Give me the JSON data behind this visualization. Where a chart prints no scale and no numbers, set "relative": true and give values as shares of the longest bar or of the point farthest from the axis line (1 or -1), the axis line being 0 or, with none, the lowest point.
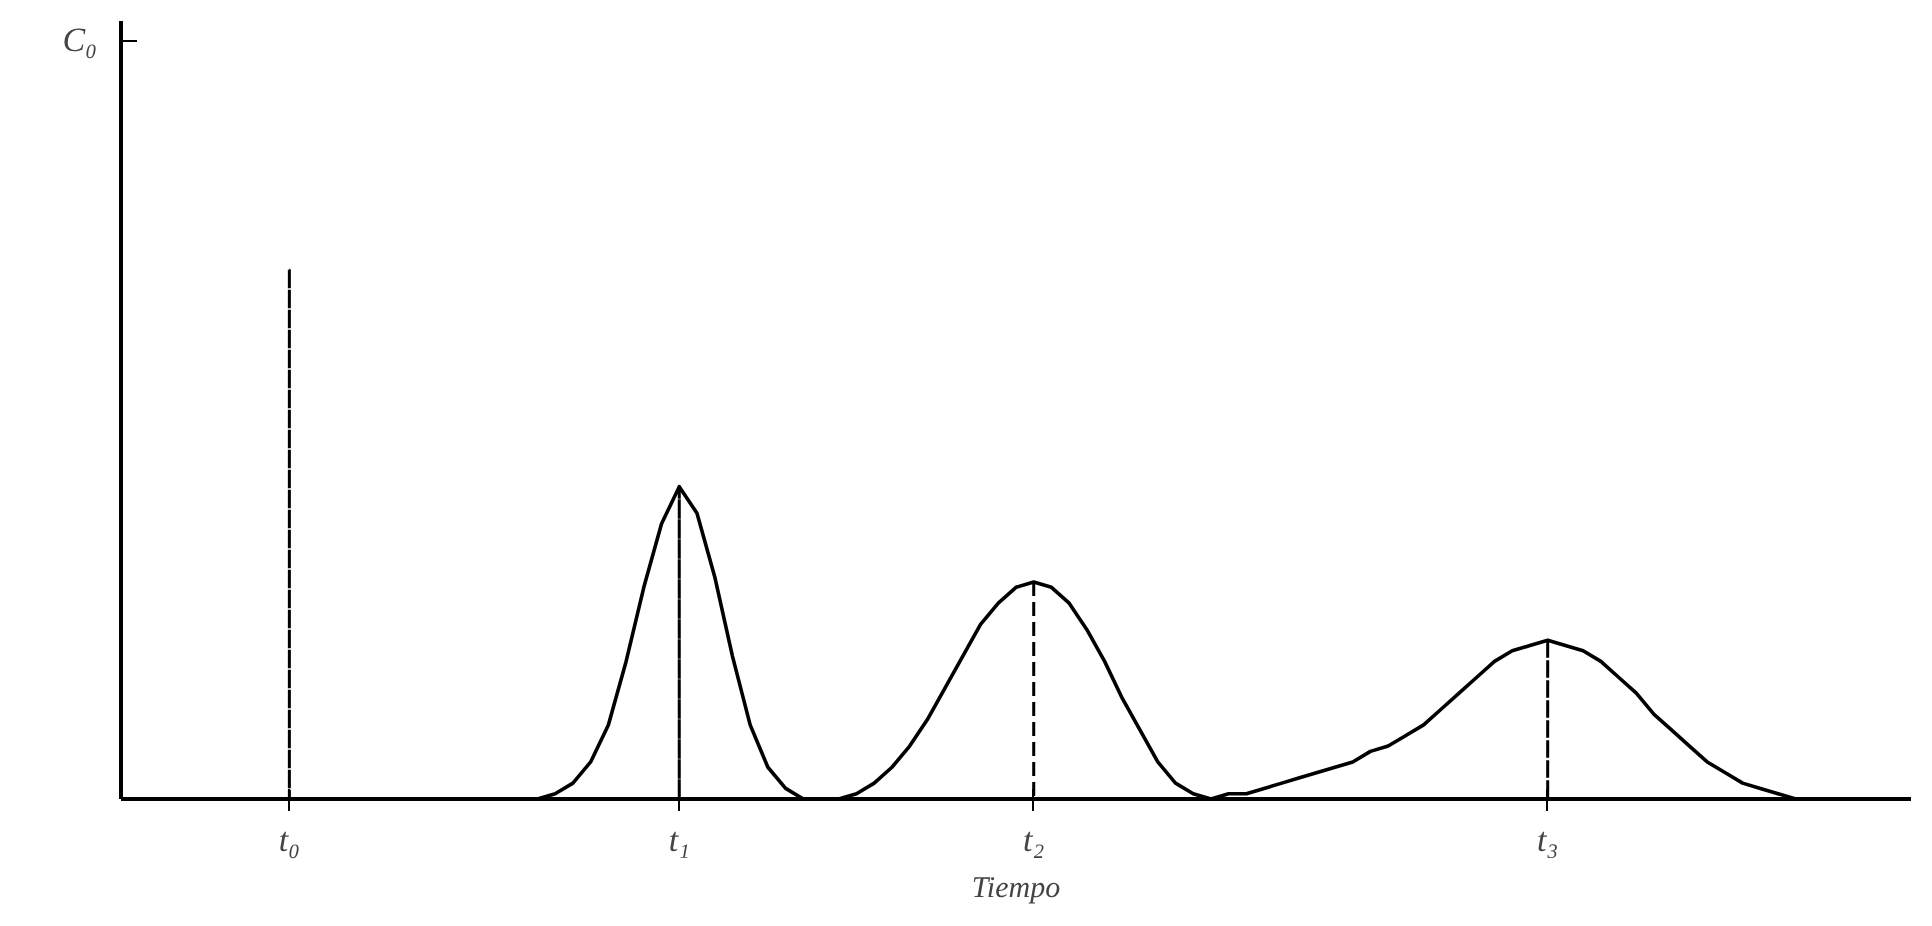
{
  "chart_data": {
    "type": "line",
    "relative": true,
    "xlabel": "Tiempo",
    "annotations": [
      "C₀"
    ],
    "categories": [
      null,
      null,
      null,
      null,
      null,
      null,
      null,
      null,
      null,
      "t₀",
      null,
      null,
      null,
      null,
      null,
      null,
      null,
      null,
      null,
      null,
      null,
      null,
      null,
      null,
      null,
      null,
      null,
      null,
      null,
      null,
      null,
      "t₁",
      null,
      null,
      null,
      null,
      null,
      null,
      null,
      null,
      null,
      null,
      null,
      null,
      null,
      null,
      null,
      null,
      null,
      null,
      null,
      "t₂",
      null,
      null,
      null,
      null,
      null,
      null,
      null,
      null,
      null,
      null,
      null,
      null,
      null,
      null,
      null,
      null,
      null,
      null,
      null,
      null,
      null,
      null,
      null,
      null,
      null,
      null,
      null,
      null,
      "t₃",
      null,
      null,
      null,
      null,
      null,
      null,
      null,
      null,
      null,
      null,
      null,
      null,
      null,
      null,
      null,
      null,
      null,
      null,
      null,
      null
    ],
    "series": [
      {
        "color": "#000000",
        "line_style": "solid",
        "values": [
          null,
          null,
          null,
          null,
          null,
          null,
          null,
          null,
          null,
          null,
          null,
          null,
          null,
          null,
          null,
          null,
          null,
          null,
          null,
          null,
          null,
          null,
          null,
          0,
          0.01,
          0.03,
          0.07,
          0.14,
          0.26,
          0.4,
          0.52,
          0.59,
          0.54,
          0.42,
          0.27,
          0.14,
          0.06,
          0.02,
          0,
          0,
          0,
          0.01,
          0.03,
          0.06,
          0.1,
          0.15,
          0.21,
          0.27,
          0.33,
          0.37,
          0.4,
          0.41,
          0.4,
          0.37,
          0.32,
          0.26,
          0.19,
          0.13,
          0.07,
          0.03,
          0.01,
          0,
          0.01,
          0.01,
          0.02,
          0.03,
          0.04,
          0.05,
          0.06,
          0.07,
          0.09,
          0.1,
          0.12,
          0.14,
          0.17,
          0.2,
          0.23,
          0.26,
          0.28,
          0.29,
          0.3,
          0.29,
          0.28,
          0.26,
          0.23,
          0.2,
          0.16,
          0.13,
          0.1,
          0.07,
          0.05,
          0.03,
          0.02,
          0.01,
          0,
          null,
          null,
          null,
          null,
          null,
          null
        ]
      },
      {
        "type": "bar",
        "color": "#000000",
        "line_style": "dashed",
        "values": [
          null,
          null,
          null,
          null,
          null,
          null,
          null,
          null,
          null,
          1,
          null,
          null,
          null,
          null,
          null,
          null,
          null,
          null,
          null,
          null,
          null,
          null,
          null,
          null,
          null,
          null,
          null,
          null,
          null,
          null,
          null,
          0.59,
          null,
          null,
          null,
          null,
          null,
          null,
          null,
          null,
          null,
          null,
          null,
          null,
          null,
          null,
          null,
          null,
          null,
          null,
          null,
          0.41,
          null,
          null,
          null,
          null,
          null,
          null,
          null,
          null,
          null,
          null,
          null,
          null,
          null,
          null,
          null,
          null,
          null,
          null,
          null,
          null,
          null,
          null,
          null,
          null,
          null,
          null,
          null,
          null,
          0.3,
          null,
          null,
          null,
          null,
          null,
          null,
          null,
          null,
          null,
          null,
          null,
          null,
          null,
          null,
          null,
          null,
          null,
          null,
          null,
          null
        ]
      }
    ]
  }
}
